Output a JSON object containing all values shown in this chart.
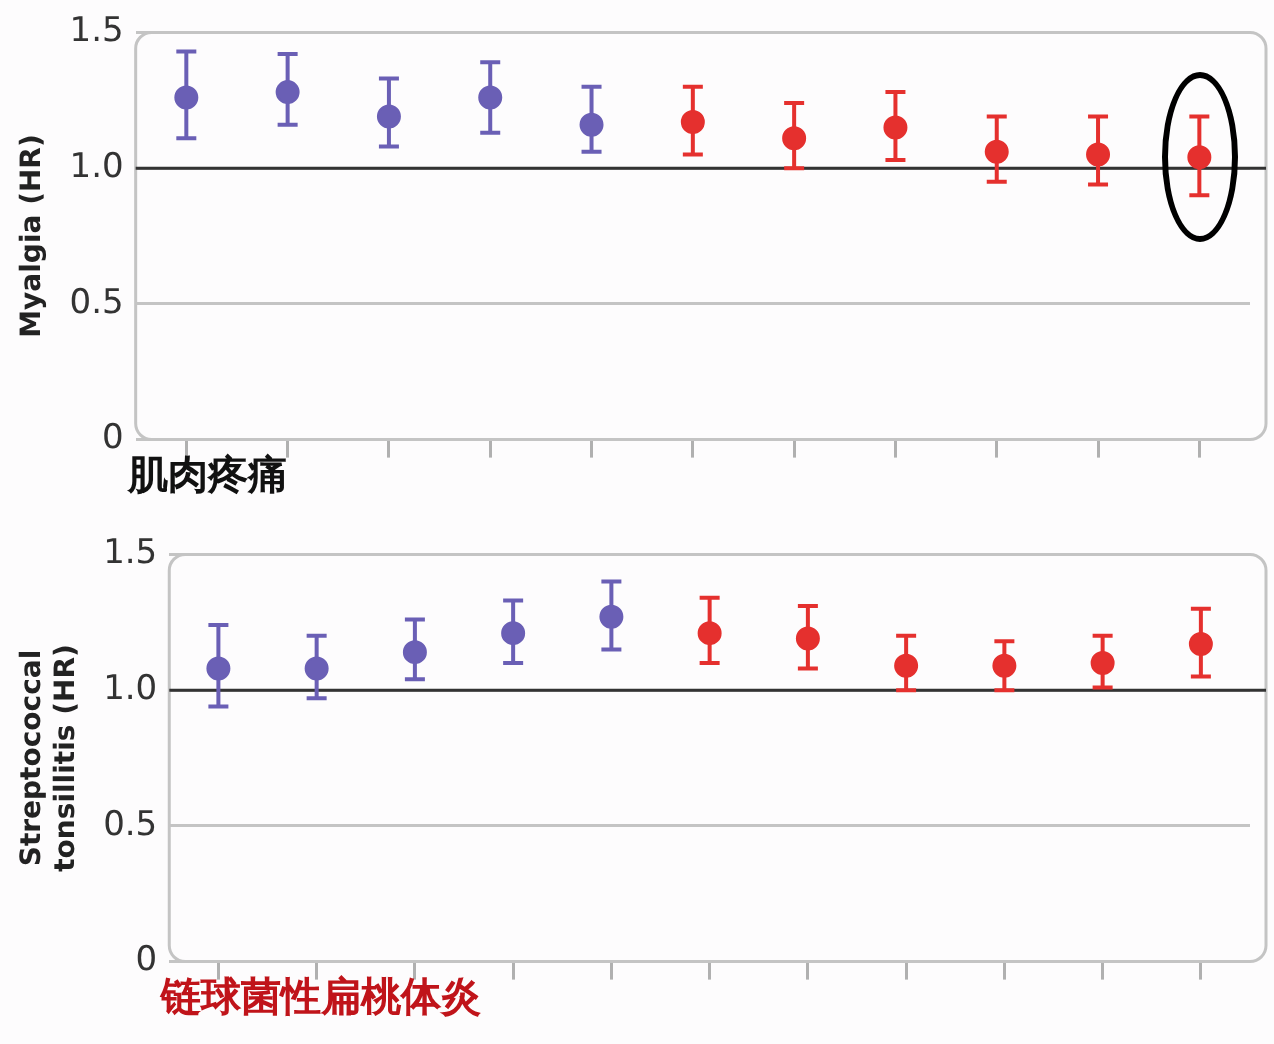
{
  "chart_data": [
    {
      "type": "scatter",
      "ylabel": "Myalgia (HR)",
      "categories": [
        null,
        null,
        null,
        null,
        null,
        null,
        null,
        null,
        null,
        null,
        null
      ],
      "values": [
        1.26,
        1.28,
        1.19,
        1.26,
        1.16,
        1.17,
        1.11,
        1.15,
        1.06,
        1.05,
        1.04
      ],
      "colors": [
        "#6a5fb5",
        "#6a5fb5",
        "#6a5fb5",
        "#6a5fb5",
        "#6a5fb5",
        "#e5302e",
        "#e5302e",
        "#e5302e",
        "#e5302e",
        "#e5302e",
        "#e5302e"
      ],
      "errors": [
        [
          1.11,
          1.43
        ],
        [
          1.16,
          1.42
        ],
        [
          1.08,
          1.33
        ],
        [
          1.13,
          1.39
        ],
        [
          1.06,
          1.3
        ],
        [
          1.05,
          1.3
        ],
        [
          1.0,
          1.24
        ],
        [
          1.03,
          1.28
        ],
        [
          0.95,
          1.19
        ],
        [
          0.94,
          1.19
        ],
        [
          0.9,
          1.19
        ]
      ],
      "ylim": [
        0,
        1.5
      ],
      "yticks": [
        0,
        0.5,
        {
          "value": 1,
          "label": "1.0"
        },
        1.5
      ],
      "grid": "y",
      "marker": "circle",
      "ref_lines": [
        {
          "axis": "y",
          "value": 1,
          "color": "#333333"
        }
      ],
      "annotations": [
        "肌肉疼痛"
      ]
    },
    {
      "type": "scatter",
      "ylabel": "Streptococcal tonsillitis (HR)",
      "categories": [
        null,
        null,
        null,
        null,
        null,
        null,
        null,
        null,
        null,
        null,
        null
      ],
      "values": [
        1.08,
        1.08,
        1.14,
        1.21,
        1.27,
        1.21,
        1.19,
        1.09,
        1.09,
        1.1,
        1.17
      ],
      "colors": [
        "#6a5fb5",
        "#6a5fb5",
        "#6a5fb5",
        "#6a5fb5",
        "#6a5fb5",
        "#e5302e",
        "#e5302e",
        "#e5302e",
        "#e5302e",
        "#e5302e",
        "#e5302e"
      ],
      "errors": [
        [
          0.94,
          1.24
        ],
        [
          0.97,
          1.2
        ],
        [
          1.04,
          1.26
        ],
        [
          1.1,
          1.33
        ],
        [
          1.15,
          1.4
        ],
        [
          1.1,
          1.34
        ],
        [
          1.08,
          1.31
        ],
        [
          1.0,
          1.2
        ],
        [
          1.0,
          1.18
        ],
        [
          1.01,
          1.2
        ],
        [
          1.05,
          1.3
        ]
      ],
      "ylim": [
        0,
        1.5
      ],
      "yticks": [
        0,
        0.5,
        {
          "value": 1,
          "label": "1.0"
        },
        1.5
      ],
      "grid": "y",
      "marker": "circle",
      "ref_lines": [
        {
          "axis": "y",
          "value": 1,
          "color": "#333333"
        }
      ],
      "annotations": [
        "链球菌性扁桃体炎"
      ]
    }
  ]
}
